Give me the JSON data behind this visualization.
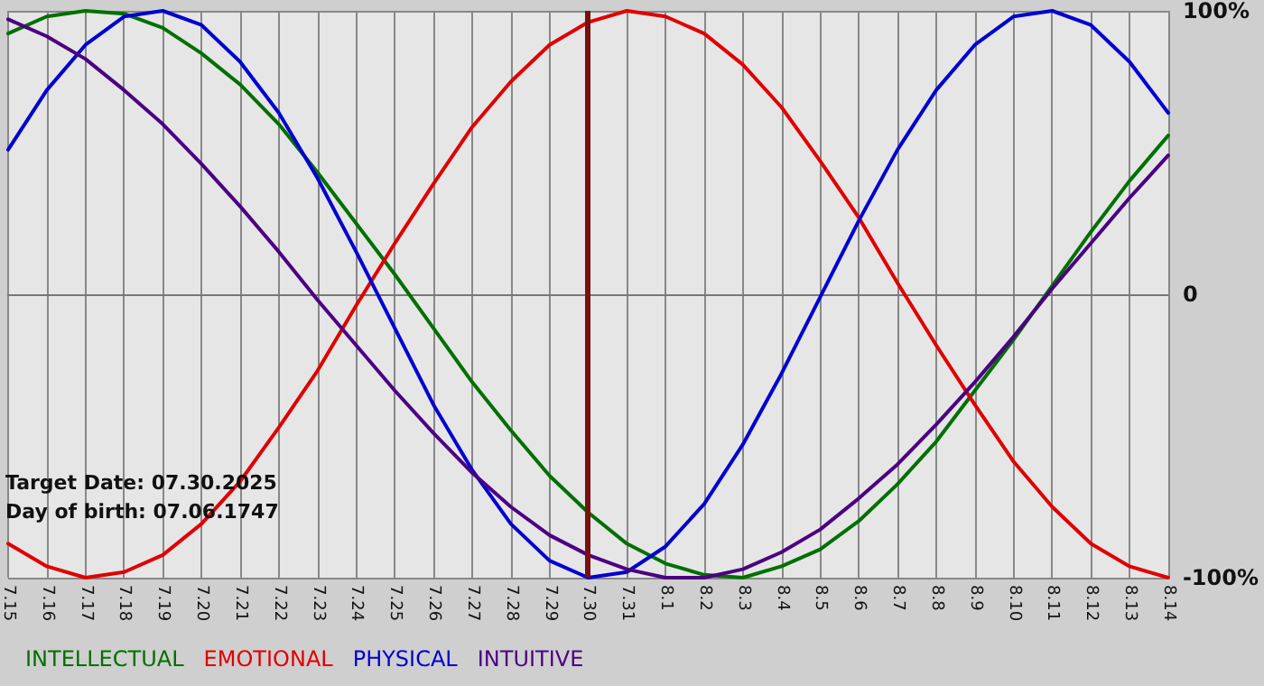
{
  "chart_data": {
    "type": "line",
    "categories": [
      "7.15",
      "7.16",
      "7.17",
      "7.18",
      "7.19",
      "7.20",
      "7.21",
      "7.22",
      "7.23",
      "7.24",
      "7.25",
      "7.26",
      "7.27",
      "7.28",
      "7.29",
      "7.30",
      "7.31",
      "8.1",
      "8.2",
      "8.3",
      "8.4",
      "8.5",
      "8.6",
      "8.7",
      "8.8",
      "8.9",
      "8.10",
      "8.11",
      "8.12",
      "8.13",
      "8.14"
    ],
    "series": [
      {
        "name": "INTELLECTUAL",
        "color": "#007000",
        "values": [
          92,
          98,
          100,
          99,
          94,
          85,
          74,
          60,
          43,
          25,
          7,
          -12,
          -31,
          -48,
          -64,
          -77,
          -88,
          -95,
          -99,
          -100,
          -96,
          -90,
          -80,
          -67,
          -52,
          -34,
          -16,
          3,
          22,
          40,
          56
        ]
      },
      {
        "name": "EMOTIONAL",
        "color": "#e00000",
        "values": [
          -88,
          -96,
          -100,
          -98,
          -92,
          -81,
          -66,
          -47,
          -27,
          -4,
          18,
          39,
          59,
          75,
          88,
          96,
          100,
          98,
          92,
          81,
          66,
          47,
          27,
          4,
          -18,
          -39,
          -59,
          -75,
          -88,
          -96,
          -100
        ]
      },
      {
        "name": "PHYSICAL",
        "color": "#0000d0",
        "values": [
          51,
          72,
          88,
          98,
          100,
          95,
          82,
          64,
          41,
          15,
          -12,
          -39,
          -62,
          -81,
          -94,
          -100,
          -98,
          -89,
          -74,
          -53,
          -28,
          -1,
          26,
          51,
          72,
          88,
          98,
          100,
          95,
          82,
          64
        ]
      },
      {
        "name": "INTUITIVE",
        "color": "#4b0082",
        "values": [
          97,
          91,
          83,
          72,
          60,
          46,
          31,
          15,
          -2,
          -18,
          -34,
          -49,
          -63,
          -75,
          -85,
          -92,
          -97,
          -100,
          -100,
          -97,
          -91,
          -83,
          -72,
          -60,
          -46,
          -31,
          -15,
          2,
          18,
          34,
          49
        ]
      }
    ],
    "ylim": [
      -100,
      100
    ],
    "yticks": [
      {
        "value": 100,
        "label": "100%"
      },
      0,
      {
        "value": -100,
        "label": "-100%"
      }
    ],
    "grid": true,
    "legend": "bottom left",
    "marker": "none",
    "line_style": "solid",
    "ref_lines": [
      {
        "axis": "x",
        "value": "7.30",
        "color": "#7a1010"
      }
    ],
    "annotations": [
      "Target Date: 07.30.2025",
      "Day of birth: 07.06.1747"
    ]
  }
}
